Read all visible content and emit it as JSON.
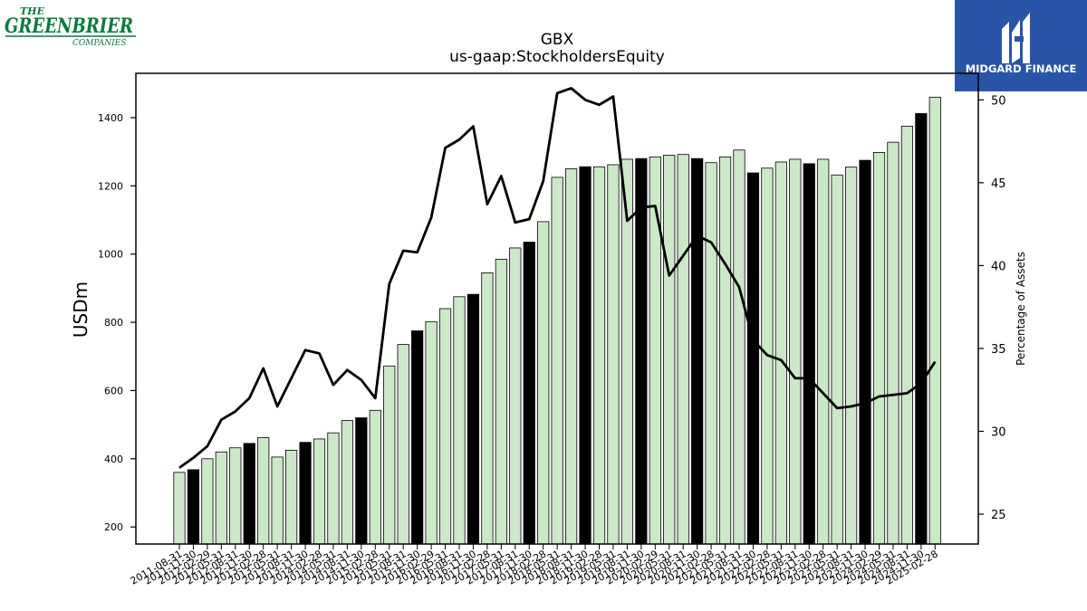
{
  "logos": {
    "left": {
      "line1": "THE",
      "line2": "GREENBRIER",
      "line3": "COMPANIES",
      "color": "#0b7a3e"
    },
    "right": {
      "text": "MIDGARD FINANCE",
      "bg": "#2a55a6",
      "fg": "#ffffff"
    }
  },
  "chart_data": {
    "type": "bar",
    "title": "GBX",
    "subtitle": "us-gaap:StockholdersEquity",
    "ylabel": "USDm",
    "y2label": "Percentage of Assets",
    "ylim": [
      150,
      1530
    ],
    "y2lim": [
      23.2,
      51.6
    ],
    "yticks": [
      200,
      400,
      600,
      800,
      1000,
      1200,
      1400
    ],
    "y2ticks": [
      25,
      30,
      35,
      40,
      45,
      50
    ],
    "colors": {
      "bar_light": "#cce8c8",
      "bar_dark": "#000000",
      "line": "#000000"
    },
    "categories": [
      "2011-08-31",
      "2011-11-30",
      "2012-02-29",
      "2012-05-31",
      "2012-08-31",
      "2012-11-30",
      "2013-02-28",
      "2013-05-31",
      "2013-08-31",
      "2013-11-30",
      "2014-02-28",
      "2014-05-31",
      "2014-08-31",
      "2014-11-30",
      "2015-02-28",
      "2015-05-31",
      "2015-08-31",
      "2015-11-30",
      "2016-02-29",
      "2016-05-31",
      "2016-08-31",
      "2016-11-30",
      "2017-02-28",
      "2017-05-31",
      "2017-08-31",
      "2017-11-30",
      "2018-02-28",
      "2018-05-31",
      "2018-08-31",
      "2018-11-30",
      "2019-02-28",
      "2019-05-31",
      "2019-08-31",
      "2019-11-30",
      "2020-02-29",
      "2020-05-31",
      "2020-08-31",
      "2020-11-30",
      "2021-02-28",
      "2021-05-31",
      "2021-08-31",
      "2021-11-30",
      "2022-02-28",
      "2022-05-31",
      "2022-08-31",
      "2022-11-30",
      "2023-02-28",
      "2023-05-31",
      "2023-08-31",
      "2023-11-30",
      "2024-02-29",
      "2024-05-31",
      "2024-08-31",
      "2024-11-30",
      "2025-02-28"
    ],
    "series": [
      {
        "kind": "bar",
        "values": [
          360,
          368,
          400,
          420,
          432,
          445,
          462,
          405,
          425,
          448,
          458,
          476,
          512,
          520,
          542,
          672,
          735,
          775,
          802,
          840,
          875,
          882,
          945,
          985,
          1018,
          1035,
          1095,
          1225,
          1250,
          1256,
          1256,
          1262,
          1278,
          1280,
          1285,
          1290,
          1292,
          1280,
          1268,
          1285,
          1305,
          1238,
          1252,
          1270,
          1278,
          1265,
          1278,
          1232,
          1255,
          1275,
          1298,
          1328,
          1375,
          1412,
          1460
        ],
        "highlight": [
          false,
          true,
          false,
          false,
          false,
          true,
          false,
          false,
          false,
          true,
          false,
          false,
          false,
          true,
          false,
          false,
          false,
          true,
          false,
          false,
          false,
          true,
          false,
          false,
          false,
          true,
          false,
          false,
          false,
          true,
          false,
          false,
          false,
          true,
          false,
          false,
          false,
          true,
          false,
          false,
          false,
          true,
          false,
          false,
          false,
          true,
          false,
          false,
          false,
          true,
          false,
          false,
          false,
          true,
          false
        ]
      },
      {
        "kind": "line",
        "axis": "right",
        "values": [
          27.8,
          28.4,
          29.1,
          30.7,
          31.2,
          32.0,
          33.8,
          31.5,
          33.2,
          34.9,
          34.7,
          32.8,
          33.7,
          33.1,
          32.0,
          38.9,
          40.9,
          40.8,
          42.9,
          47.1,
          47.6,
          48.4,
          43.7,
          45.4,
          42.6,
          42.8,
          45.1,
          50.4,
          50.7,
          50.0,
          49.7,
          50.2,
          42.7,
          43.5,
          43.6,
          39.4,
          40.6,
          41.8,
          41.4,
          40.1,
          38.7,
          35.5,
          34.6,
          34.3,
          33.2,
          33.2,
          32.3,
          31.4,
          31.5,
          31.7,
          32.1,
          32.2,
          32.3,
          32.9,
          34.2
        ]
      }
    ]
  }
}
